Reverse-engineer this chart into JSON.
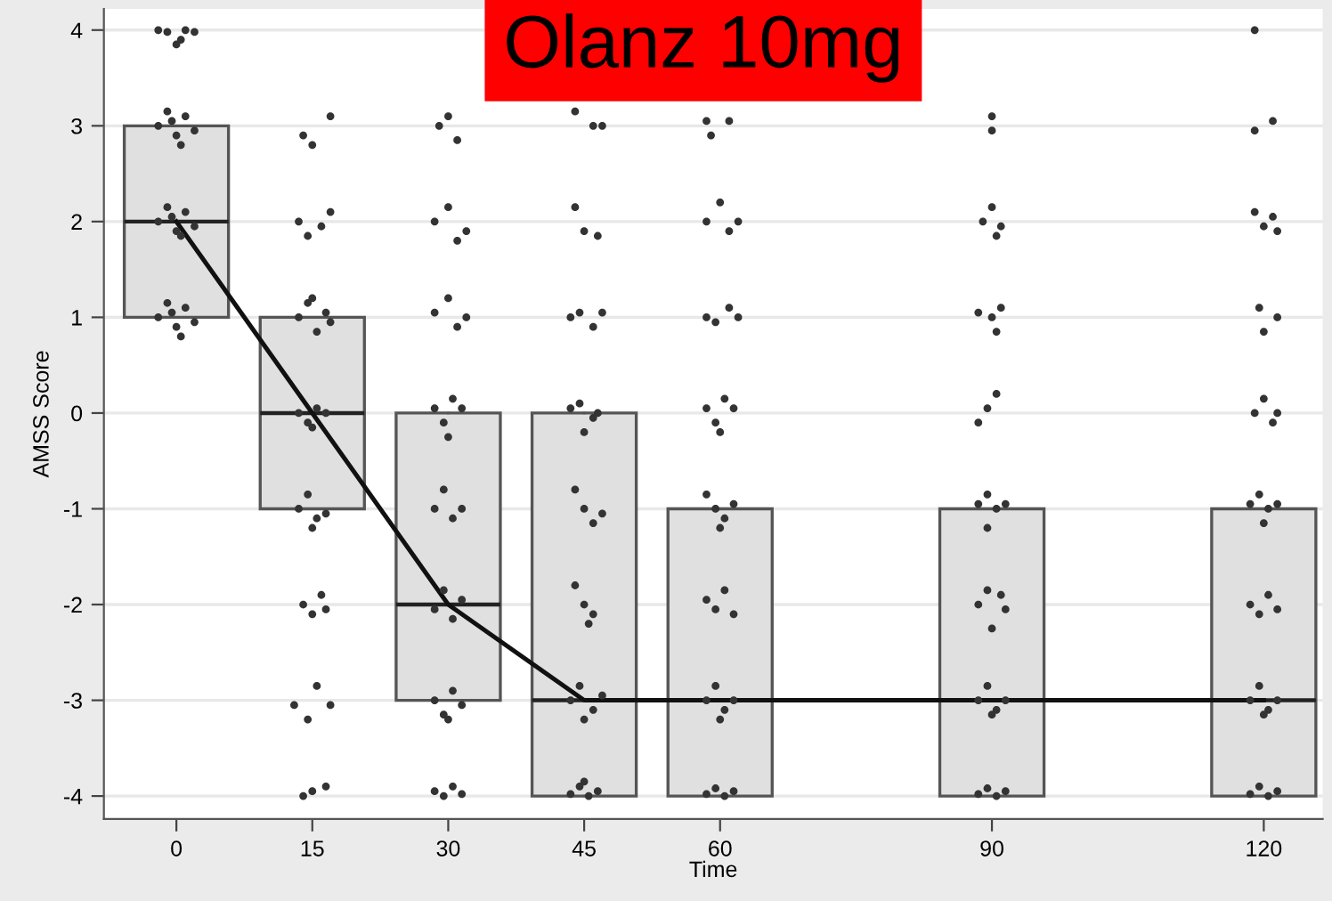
{
  "chart_data": {
    "type": "box",
    "title": "Olanz 10mg",
    "xlabel": "Time",
    "ylabel": "AMSS Score",
    "x": [
      0,
      15,
      30,
      45,
      60,
      90,
      120
    ],
    "boxes": [
      {
        "low": 1,
        "q1": 1,
        "median": 2,
        "q3": 3,
        "high": 3
      },
      {
        "low": -1,
        "q1": -1,
        "median": 0,
        "q3": 1,
        "high": 1
      },
      {
        "low": -3,
        "q1": -3,
        "median": -2,
        "q3": 0,
        "high": 0
      },
      {
        "low": -4,
        "q1": -4,
        "median": -3,
        "q3": 0,
        "high": 0
      },
      {
        "low": -4,
        "q1": -4,
        "median": -3,
        "q3": -1,
        "high": -1
      },
      {
        "low": -4,
        "q1": -4,
        "median": -3,
        "q3": -1,
        "high": -1
      },
      {
        "low": -4,
        "q1": -4,
        "median": -3,
        "q3": -1,
        "high": -1
      }
    ],
    "color": "#e0e0e0",
    "xlim": [
      -8,
      126.5
    ],
    "xticks": [
      0,
      15,
      30,
      45,
      60,
      90,
      120
    ],
    "ylim": [
      -4.24,
      4.22
    ],
    "yticks": [
      -4,
      -3,
      -2,
      -1,
      0,
      1,
      2,
      3,
      4
    ],
    "grid": "y",
    "marker": "circle",
    "line_style": "solid",
    "series": [
      {
        "type": "line",
        "marker": "none",
        "color": "#111111",
        "x": [
          0,
          15,
          30,
          45,
          60,
          90,
          120
        ],
        "values": [
          2,
          0,
          -2,
          -3,
          -3,
          -3,
          -3
        ]
      },
      {
        "type": "scatter",
        "color": "#333333",
        "x": [
          -2,
          -1,
          0,
          1,
          2,
          0.5,
          -2,
          -1,
          0,
          1,
          2,
          0.5,
          -0.5,
          -2,
          -1,
          0,
          1,
          2,
          0.5,
          -0.5,
          -2,
          -1,
          0,
          1,
          2,
          0.5,
          -0.5
        ],
        "values": [
          4,
          3.98,
          3.85,
          4,
          3.98,
          3.9,
          3.0,
          3.15,
          2.9,
          3.1,
          2.95,
          2.8,
          3.05,
          2.0,
          2.15,
          1.9,
          2.1,
          1.95,
          1.85,
          2.05,
          1.0,
          1.15,
          0.9,
          1.1,
          0.95,
          0.8,
          1.05
        ]
      },
      {
        "type": "scatter",
        "color": "#333333",
        "x": [
          14,
          15,
          17,
          13.5,
          14.5,
          16,
          17,
          13.5,
          14.5,
          15.5,
          16.5,
          17,
          15,
          13.5,
          14.5,
          15.5,
          16.5,
          15,
          13.5,
          14.5,
          15.5,
          16.5,
          15,
          14,
          15,
          16,
          16.5,
          13,
          14.5,
          15.5,
          17,
          14,
          15,
          16.5
        ],
        "values": [
          2.9,
          2.8,
          3.1,
          2.0,
          1.85,
          1.95,
          2.1,
          1.0,
          1.15,
          0.85,
          1.05,
          0.95,
          1.2,
          0,
          -0.1,
          0.05,
          0.0,
          -0.15,
          -1.0,
          -0.85,
          -1.1,
          -1.05,
          -1.2,
          -2.0,
          -2.1,
          -1.9,
          -2.05,
          -3.05,
          -3.2,
          -2.85,
          -3.05,
          -4.0,
          -3.95,
          -3.9
        ]
      },
      {
        "type": "scatter",
        "color": "#333333",
        "x": [
          29,
          30,
          31,
          28.5,
          30,
          31,
          32,
          28.5,
          30,
          31,
          32,
          28.5,
          29.5,
          30.5,
          31.5,
          30,
          28.5,
          29.5,
          30.5,
          31.5,
          28.5,
          29.5,
          30.5,
          31.5,
          28.5,
          29.5,
          30.5,
          31.5,
          30,
          28.5,
          29.5,
          30.5,
          31.5
        ],
        "values": [
          3.0,
          3.1,
          2.85,
          2.0,
          2.15,
          1.8,
          1.9,
          1.05,
          1.2,
          0.9,
          1.0,
          0.05,
          -0.1,
          0.15,
          0.05,
          -0.25,
          -1.0,
          -0.8,
          -1.1,
          -1.0,
          -2.05,
          -1.85,
          -2.15,
          -1.95,
          -3.0,
          -3.15,
          -2.9,
          -3.05,
          -3.2,
          -3.95,
          -4.0,
          -3.9,
          -3.98
        ]
      },
      {
        "type": "scatter",
        "color": "#333333",
        "x": [
          44,
          46,
          47,
          44,
          45,
          46.5,
          43.5,
          44.5,
          46,
          47,
          43.5,
          44.5,
          46,
          46.5,
          45,
          44,
          45,
          46,
          47,
          44,
          45,
          46,
          45.5,
          43.5,
          44.5,
          46,
          47,
          45,
          43.5,
          44.5,
          45.5,
          46.5,
          45
        ],
        "values": [
          3.15,
          3.0,
          3.0,
          2.15,
          1.9,
          1.85,
          1.0,
          1.05,
          0.9,
          1.05,
          0.05,
          0.1,
          -0.05,
          0.0,
          -0.2,
          -0.8,
          -1.0,
          -1.15,
          -1.05,
          -1.8,
          -2.0,
          -2.1,
          -2.2,
          -3.0,
          -2.85,
          -3.1,
          -2.95,
          -3.2,
          -3.98,
          -3.9,
          -4.0,
          -3.95,
          -3.85
        ]
      },
      {
        "type": "scatter",
        "color": "#333333",
        "x": [
          58.5,
          59,
          61,
          58.5,
          60,
          61,
          62,
          58.5,
          59.5,
          61,
          62,
          58.5,
          59.5,
          60.5,
          61.5,
          60,
          58.5,
          59.5,
          60.5,
          61.5,
          60,
          58.5,
          59.5,
          60.5,
          61.5,
          58.5,
          59.5,
          60.5,
          61.5,
          60,
          58.5,
          59.5,
          60.5,
          61.5
        ],
        "values": [
          3.05,
          2.9,
          3.05,
          2.0,
          2.2,
          1.9,
          2.0,
          1.0,
          0.95,
          1.1,
          1.0,
          0.05,
          -0.1,
          0.15,
          0.05,
          -0.2,
          -0.85,
          -1.0,
          -1.1,
          -0.95,
          -1.2,
          -1.95,
          -2.05,
          -1.85,
          -2.1,
          -3.0,
          -2.85,
          -3.1,
          -3.0,
          -3.2,
          -3.98,
          -3.92,
          -4.0,
          -3.95
        ]
      },
      {
        "type": "scatter",
        "color": "#333333",
        "x": [
          90,
          90,
          89,
          90,
          91,
          90.5,
          88.5,
          90,
          91,
          90.5,
          88.5,
          89.5,
          90.5,
          88.5,
          89.5,
          90.5,
          91.5,
          89.5,
          88.5,
          89.5,
          91,
          91.5,
          90,
          88.5,
          89.5,
          90.5,
          91.5,
          90,
          88.5,
          89.5,
          90.5,
          91.5
        ],
        "values": [
          3.1,
          2.95,
          2.0,
          2.15,
          1.95,
          1.85,
          1.05,
          1.0,
          1.1,
          0.85,
          -0.1,
          0.05,
          0.2,
          -0.95,
          -0.85,
          -1.0,
          -0.95,
          -1.2,
          -2.0,
          -1.85,
          -1.9,
          -2.05,
          -2.25,
          -3.0,
          -2.85,
          -3.1,
          -3.0,
          -3.15,
          -3.98,
          -3.92,
          -4.0,
          -3.95
        ]
      },
      {
        "type": "scatter",
        "color": "#333333",
        "x": [
          119,
          119,
          121,
          119,
          120,
          121,
          121.5,
          119.5,
          120,
          121.5,
          119,
          120,
          121,
          121.5,
          118.5,
          119.5,
          120.5,
          121.5,
          120,
          118.5,
          119.5,
          120.5,
          121.5,
          118.5,
          119.5,
          120.5,
          121.5,
          120,
          118.5,
          119.5,
          120.5,
          121.5
        ],
        "values": [
          4.0,
          2.95,
          3.05,
          2.1,
          1.95,
          2.05,
          1.9,
          1.1,
          0.85,
          1.0,
          0.0,
          0.15,
          -0.1,
          0.0,
          -0.95,
          -0.85,
          -1.0,
          -0.95,
          -1.15,
          -2.0,
          -2.1,
          -1.9,
          -2.05,
          -3.0,
          -2.85,
          -3.1,
          -3.0,
          -3.15,
          -3.98,
          -3.9,
          -4.0,
          -3.95
        ]
      }
    ]
  }
}
